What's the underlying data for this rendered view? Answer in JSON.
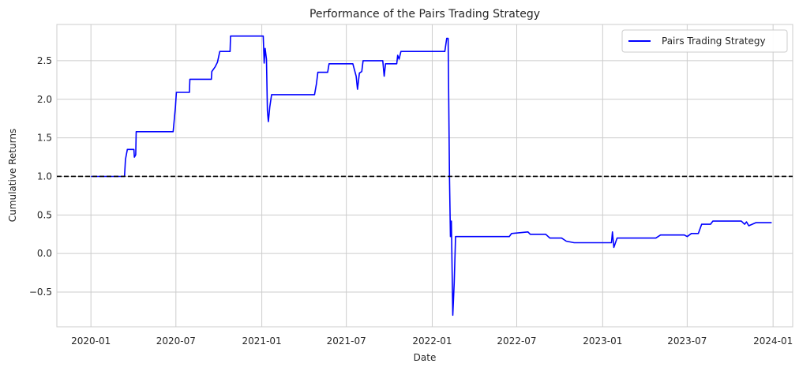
{
  "chart_data": {
    "type": "line",
    "title": "Performance of the Pairs Trading Strategy",
    "xlabel": "Date",
    "ylabel": "Cumulative Returns",
    "x_ticks": [
      "2020-01",
      "2020-07",
      "2021-01",
      "2021-07",
      "2022-01",
      "2022-07",
      "2023-01",
      "2023-07",
      "2024-01"
    ],
    "x_tick_values": [
      "2020-01-01",
      "2020-07-01",
      "2021-01-01",
      "2021-07-01",
      "2022-01-01",
      "2022-07-01",
      "2023-01-01",
      "2023-07-01",
      "2024-01-01"
    ],
    "xlim": [
      "2019-10-20",
      "2024-02-12"
    ],
    "y_ticks": [
      -0.5,
      0.0,
      0.5,
      1.0,
      1.5,
      2.0,
      2.5
    ],
    "y_tick_labels": [
      "−0.5",
      "0.0",
      "0.5",
      "1.0",
      "1.5",
      "2.0",
      "2.5"
    ],
    "ylim": [
      -0.95,
      2.97
    ],
    "grid": true,
    "legend_position": "top-right",
    "reference_line": {
      "y": 1.0,
      "style": "dashed",
      "color": "#000000"
    },
    "series": [
      {
        "name": "Pairs Trading Strategy",
        "color": "#0000ff",
        "points": [
          [
            "2020-01-01",
            1.0
          ],
          [
            "2020-03-13",
            1.0
          ],
          [
            "2020-03-15",
            1.22
          ],
          [
            "2020-03-19",
            1.35
          ],
          [
            "2020-04-02",
            1.35
          ],
          [
            "2020-04-03",
            1.25
          ],
          [
            "2020-04-06",
            1.28
          ],
          [
            "2020-04-07",
            1.58
          ],
          [
            "2020-06-25",
            1.58
          ],
          [
            "2020-06-27",
            1.7
          ],
          [
            "2020-06-30",
            1.9
          ],
          [
            "2020-07-02",
            2.09
          ],
          [
            "2020-07-30",
            2.09
          ],
          [
            "2020-07-31",
            2.26
          ],
          [
            "2020-09-15",
            2.26
          ],
          [
            "2020-09-16",
            2.36
          ],
          [
            "2020-09-23",
            2.42
          ],
          [
            "2020-09-28",
            2.48
          ],
          [
            "2020-10-03",
            2.62
          ],
          [
            "2020-10-25",
            2.62
          ],
          [
            "2020-10-26",
            2.82
          ],
          [
            "2021-01-04",
            2.82
          ],
          [
            "2021-01-06",
            2.47
          ],
          [
            "2021-01-08",
            2.66
          ],
          [
            "2021-01-11",
            2.52
          ],
          [
            "2021-01-13",
            1.85
          ],
          [
            "2021-01-15",
            1.71
          ],
          [
            "2021-01-18",
            1.9
          ],
          [
            "2021-01-22",
            2.06
          ],
          [
            "2021-04-24",
            2.06
          ],
          [
            "2021-04-28",
            2.2
          ],
          [
            "2021-05-01",
            2.35
          ],
          [
            "2021-05-22",
            2.35
          ],
          [
            "2021-05-25",
            2.46
          ],
          [
            "2021-07-15",
            2.46
          ],
          [
            "2021-07-22",
            2.3
          ],
          [
            "2021-07-25",
            2.13
          ],
          [
            "2021-07-29",
            2.34
          ],
          [
            "2021-08-03",
            2.36
          ],
          [
            "2021-08-06",
            2.5
          ],
          [
            "2021-09-17",
            2.5
          ],
          [
            "2021-09-20",
            2.3
          ],
          [
            "2021-09-23",
            2.46
          ],
          [
            "2021-10-17",
            2.46
          ],
          [
            "2021-10-19",
            2.57
          ],
          [
            "2021-10-22",
            2.52
          ],
          [
            "2021-10-26",
            2.62
          ],
          [
            "2022-01-28",
            2.62
          ],
          [
            "2022-02-01",
            2.79
          ],
          [
            "2022-02-04",
            2.79
          ],
          [
            "2022-02-07",
            1.0
          ],
          [
            "2022-02-09",
            0.22
          ],
          [
            "2022-02-11",
            0.42
          ],
          [
            "2022-02-14",
            -0.8
          ],
          [
            "2022-02-17",
            -0.38
          ],
          [
            "2022-02-20",
            0.22
          ],
          [
            "2022-06-15",
            0.22
          ],
          [
            "2022-06-20",
            0.26
          ],
          [
            "2022-07-25",
            0.28
          ],
          [
            "2022-07-30",
            0.25
          ],
          [
            "2022-09-01",
            0.25
          ],
          [
            "2022-09-10",
            0.2
          ],
          [
            "2022-10-05",
            0.2
          ],
          [
            "2022-10-15",
            0.16
          ],
          [
            "2022-11-01",
            0.14
          ],
          [
            "2023-01-20",
            0.14
          ],
          [
            "2023-01-22",
            0.28
          ],
          [
            "2023-01-25",
            0.08
          ],
          [
            "2023-02-01",
            0.2
          ],
          [
            "2023-04-25",
            0.2
          ],
          [
            "2023-05-05",
            0.24
          ],
          [
            "2023-06-25",
            0.24
          ],
          [
            "2023-07-01",
            0.22
          ],
          [
            "2023-07-10",
            0.26
          ],
          [
            "2023-07-25",
            0.26
          ],
          [
            "2023-08-01",
            0.38
          ],
          [
            "2023-08-20",
            0.38
          ],
          [
            "2023-08-25",
            0.42
          ],
          [
            "2023-10-25",
            0.42
          ],
          [
            "2023-11-01",
            0.38
          ],
          [
            "2023-11-05",
            0.41
          ],
          [
            "2023-11-10",
            0.36
          ],
          [
            "2023-11-25",
            0.4
          ],
          [
            "2023-12-29",
            0.4
          ]
        ]
      }
    ]
  }
}
